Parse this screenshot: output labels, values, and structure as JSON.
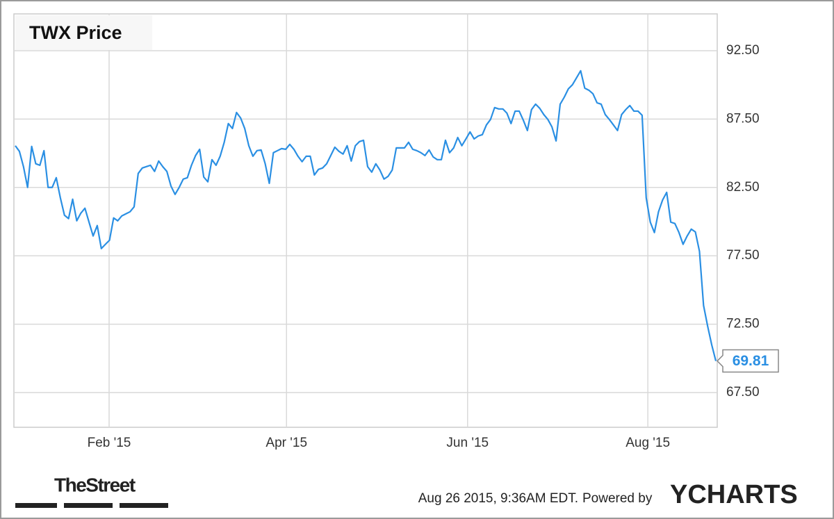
{
  "chart_data": {
    "type": "line",
    "title": "TWX Price",
    "series": [
      {
        "name": "TWX",
        "color": "#2a8fe3",
        "values": [
          85.55,
          85.14,
          84.02,
          82.5,
          85.5,
          84.23,
          84.12,
          85.19,
          82.5,
          82.5,
          83.21,
          81.74,
          80.47,
          80.22,
          81.64,
          80.06,
          80.62,
          80.98,
          79.96,
          78.95,
          79.71,
          78.03,
          78.34,
          78.64,
          80.27,
          80.06,
          80.42,
          80.57,
          80.72,
          81.08,
          83.52,
          83.92,
          84.02,
          84.12,
          83.67,
          84.43,
          84.02,
          83.67,
          82.6,
          81.99,
          82.5,
          83.11,
          83.21,
          84.12,
          84.83,
          85.29,
          83.26,
          82.91,
          84.53,
          84.12,
          84.78,
          85.8,
          87.17,
          86.81,
          87.98,
          87.58,
          86.81,
          85.55,
          84.78,
          85.19,
          85.24,
          84.23,
          82.8,
          85.04,
          85.19,
          85.34,
          85.29,
          85.65,
          85.29,
          84.78,
          84.38,
          84.78,
          84.78,
          83.41,
          83.82,
          83.92,
          84.23,
          84.83,
          85.44,
          85.14,
          84.94,
          85.55,
          84.43,
          85.55,
          85.85,
          85.95,
          84.02,
          83.62,
          84.23,
          83.77,
          83.11,
          83.31,
          83.77,
          85.39,
          85.39,
          85.39,
          85.8,
          85.29,
          85.19,
          85.04,
          84.83,
          85.24,
          84.73,
          84.53,
          84.53,
          85.95,
          85.04,
          85.39,
          86.15,
          85.55,
          86.05,
          86.56,
          86.05,
          86.26,
          86.36,
          87.07,
          87.47,
          88.34,
          88.24,
          88.24,
          87.93,
          87.17,
          88.08,
          88.08,
          87.42,
          86.66,
          88.19,
          88.59,
          88.29,
          87.83,
          87.47,
          86.92,
          85.9,
          88.59,
          89.1,
          89.71,
          90.01,
          90.52,
          91.03,
          89.76,
          89.61,
          89.35,
          88.69,
          88.59,
          87.83,
          87.47,
          87.07,
          86.66,
          87.83,
          88.19,
          88.49,
          88.08,
          88.08,
          87.78,
          81.74,
          79.96,
          79.2,
          80.72,
          81.58,
          82.14,
          79.96,
          79.86,
          79.2,
          78.34,
          78.95,
          79.45,
          79.25,
          77.83,
          73.87,
          72.35,
          70.98,
          69.81
        ]
      }
    ],
    "xlim": [
      -0.34,
      171.34
    ],
    "xticks": [
      {
        "value": 22.9,
        "label": "Feb '15"
      },
      {
        "value": 66.2,
        "label": "Apr '15"
      },
      {
        "value": 110.4,
        "label": "Jun '15"
      },
      {
        "value": 154.4,
        "label": "Aug '15"
      }
    ],
    "ylim": [
      64.96,
      95.19
    ],
    "yticks": [
      {
        "value": 67.5,
        "label": "67.50"
      },
      {
        "value": 72.5,
        "label": "72.50"
      },
      {
        "value": 77.5,
        "label": "77.50"
      },
      {
        "value": 82.5,
        "label": "82.50"
      },
      {
        "value": 87.5,
        "label": "87.50"
      },
      {
        "value": 92.5,
        "label": "92.50"
      }
    ],
    "grid": true,
    "publisher": "TheStreet",
    "timestamp": "Aug 26 2015, 9:36AM EDT.",
    "powered_by": "Powered by",
    "brand": "YCHARTS"
  }
}
